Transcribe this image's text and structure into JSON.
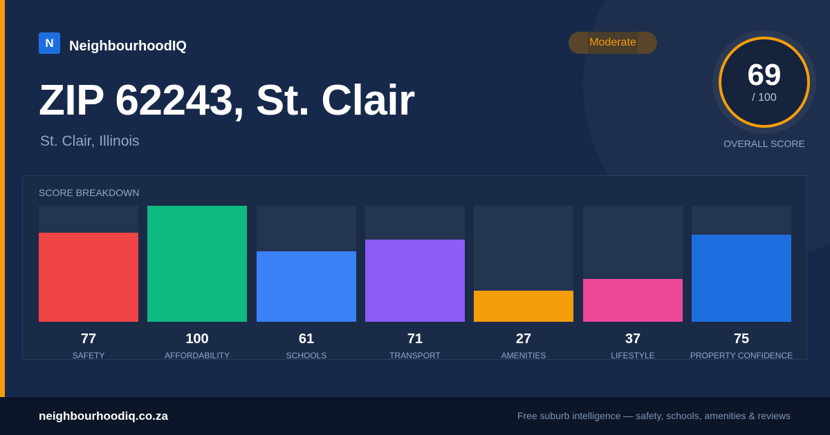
{
  "brand": {
    "logo_letter": "N",
    "name": "NeighbourhoodIQ"
  },
  "header": {
    "title": "ZIP 62243, St. Clair",
    "subtitle": "St. Clair, Illinois",
    "badge": "Moderate"
  },
  "overall_score": {
    "value": "69",
    "max": "/ 100",
    "caption": "OVERALL SCORE",
    "ring_color": "#f59e0b"
  },
  "breakdown": {
    "title": "SCORE BREAKDOWN",
    "max_score": 100,
    "items": [
      {
        "label": "SAFETY",
        "value": 77,
        "color": "#ef4444"
      },
      {
        "label": "AFFORDABILITY",
        "value": 100,
        "color": "#10b981"
      },
      {
        "label": "SCHOOLS",
        "value": 61,
        "color": "#3b82f6"
      },
      {
        "label": "TRANSPORT",
        "value": 71,
        "color": "#8b5cf6"
      },
      {
        "label": "AMENITIES",
        "value": 27,
        "color": "#f59e0b"
      },
      {
        "label": "LIFESTYLE",
        "value": 37,
        "color": "#ec4899"
      },
      {
        "label": "PROPERTY CONFIDENCE",
        "value": 75,
        "color": "#1d6fe0"
      }
    ]
  },
  "footer": {
    "site": "neighbourhoodiq.co.za",
    "tagline": "Free suburb intelligence — safety, schools, amenities & reviews"
  }
}
